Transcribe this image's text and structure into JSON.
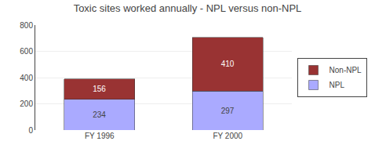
{
  "chart_data": {
    "type": "bar",
    "title": "Toxic sites worked annually - NPL versus non-NPL",
    "categories": [
      "FY 1996",
      "FY 2000"
    ],
    "series": [
      {
        "name": "NPL",
        "color": "#aaaaff",
        "values": [
          234,
          297
        ]
      },
      {
        "name": "Non-NPL",
        "color": "#993333",
        "values": [
          156,
          410
        ]
      }
    ],
    "stacked": true,
    "data_labels": true,
    "ylim": [
      0,
      800
    ],
    "yticks": [
      0,
      200,
      400,
      600,
      800
    ],
    "grid": true,
    "legend": "right"
  }
}
